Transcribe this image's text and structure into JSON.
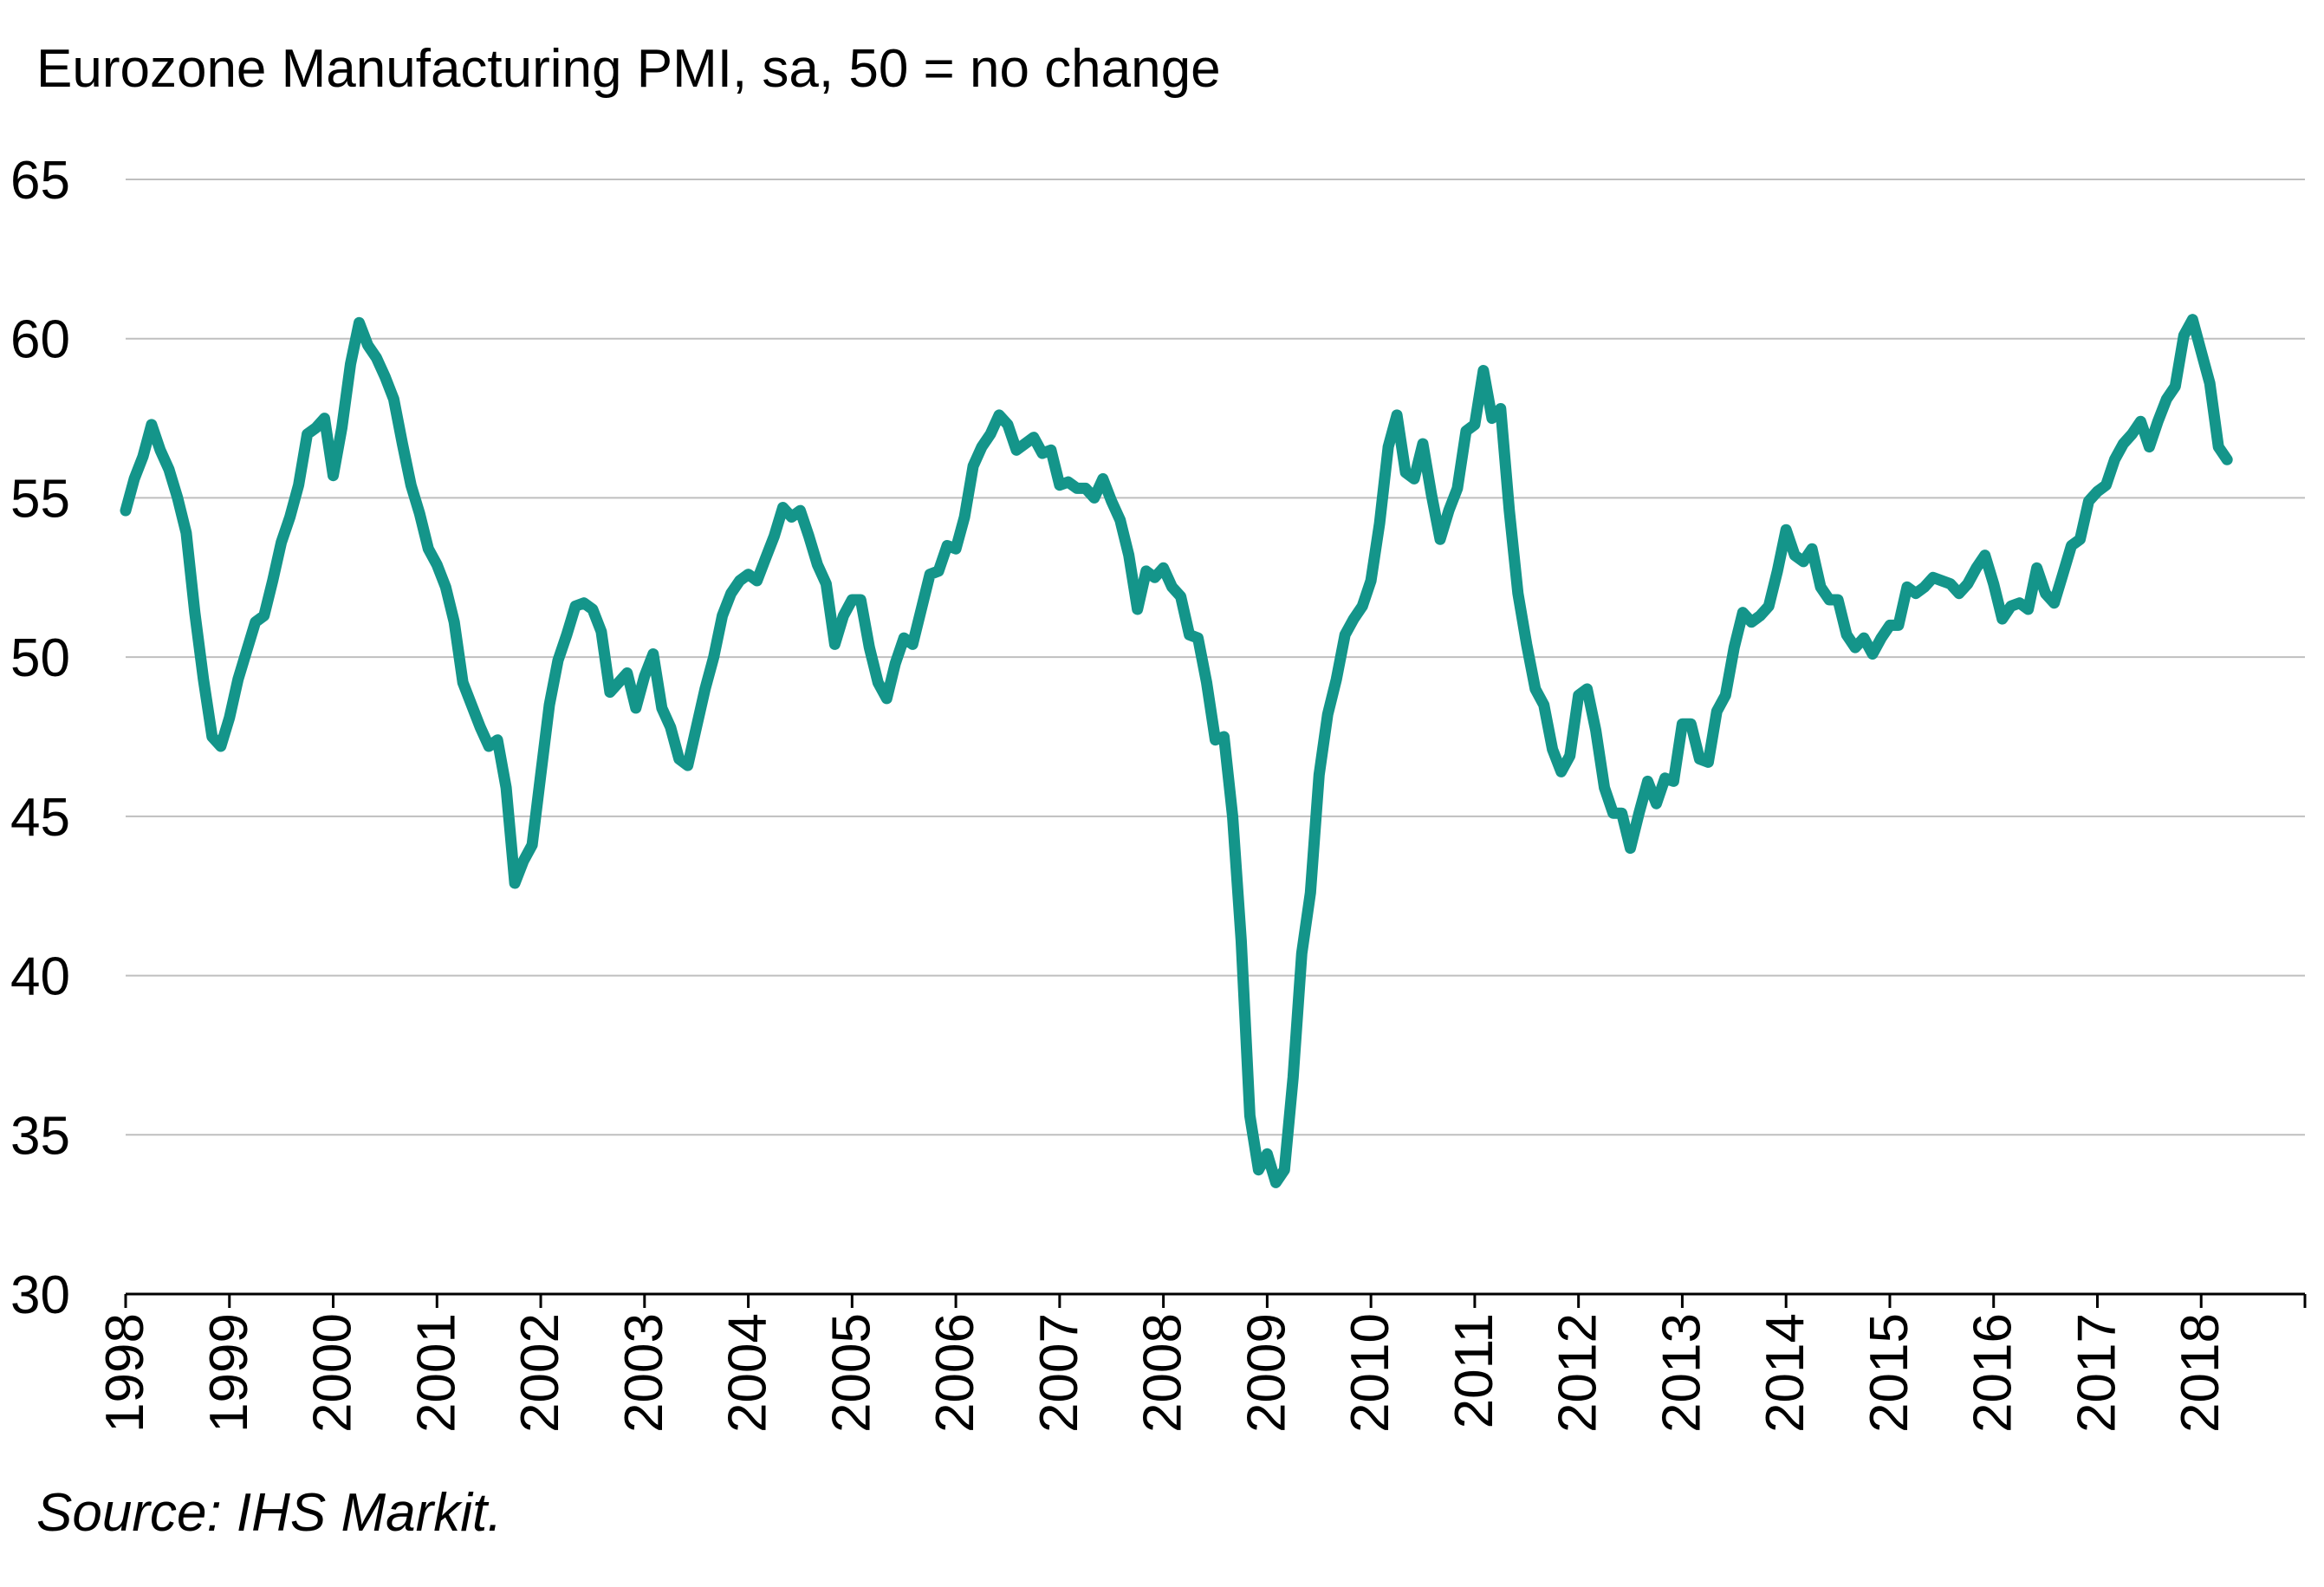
{
  "title": "Eurozone Manufacturing PMI, sa, 50 = no change",
  "source": "Source: IHS Markit.",
  "colors": {
    "line": "#14958a",
    "grid": "#bfbfbf",
    "axis": "#000000"
  },
  "chart_data": {
    "type": "line",
    "title": "Eurozone Manufacturing PMI, sa, 50 = no change",
    "xlabel": "",
    "ylabel": "",
    "ylim": [
      30,
      65
    ],
    "yticks": [
      30,
      35,
      40,
      45,
      50,
      55,
      60,
      65
    ],
    "xticks": [
      "1998",
      "1999",
      "2000",
      "2001",
      "2002",
      "2003",
      "2004",
      "2005",
      "2006",
      "2007",
      "2008",
      "2009",
      "2010",
      "2011",
      "2012",
      "2013",
      "2014",
      "2015",
      "2016",
      "2017",
      "2018"
    ],
    "xlim": [
      "1998-01",
      "2019-01"
    ],
    "grid": "horizontal",
    "legend": "none",
    "series": [
      {
        "x": [
          "1998-01",
          "1998-02",
          "1998-03",
          "1998-04",
          "1998-05",
          "1998-06",
          "1998-07",
          "1998-08",
          "1998-09",
          "1998-10",
          "1998-11",
          "1998-12",
          "1999-01",
          "1999-02",
          "1999-03",
          "1999-04",
          "1999-05",
          "1999-06",
          "1999-07",
          "1999-08",
          "1999-09",
          "1999-10",
          "1999-11",
          "1999-12",
          "2000-01",
          "2000-02",
          "2000-03",
          "2000-04",
          "2000-05",
          "2000-06",
          "2000-07",
          "2000-08",
          "2000-09",
          "2000-10",
          "2000-11",
          "2000-12",
          "2001-01",
          "2001-02",
          "2001-03",
          "2001-04",
          "2001-05",
          "2001-06",
          "2001-07",
          "2001-08",
          "2001-09",
          "2001-10",
          "2001-11",
          "2001-12",
          "2002-01",
          "2002-02",
          "2002-03",
          "2002-04",
          "2002-05",
          "2002-06",
          "2002-07",
          "2002-08",
          "2002-09",
          "2002-10",
          "2002-11",
          "2002-12",
          "2003-01",
          "2003-02",
          "2003-03",
          "2003-04",
          "2003-05",
          "2003-06",
          "2003-07",
          "2003-08",
          "2003-09",
          "2003-10",
          "2003-11",
          "2003-12",
          "2004-01",
          "2004-02",
          "2004-03",
          "2004-04",
          "2004-05",
          "2004-06",
          "2004-07",
          "2004-08",
          "2004-09",
          "2004-10",
          "2004-11",
          "2004-12",
          "2005-01",
          "2005-02",
          "2005-03",
          "2005-04",
          "2005-05",
          "2005-06",
          "2005-07",
          "2005-08",
          "2005-09",
          "2005-10",
          "2005-11",
          "2005-12",
          "2006-01",
          "2006-02",
          "2006-03",
          "2006-04",
          "2006-05",
          "2006-06",
          "2006-07",
          "2006-08",
          "2006-09",
          "2006-10",
          "2006-11",
          "2006-12",
          "2007-01",
          "2007-02",
          "2007-03",
          "2007-04",
          "2007-05",
          "2007-06",
          "2007-07",
          "2007-08",
          "2007-09",
          "2007-10",
          "2007-11",
          "2007-12",
          "2008-01",
          "2008-02",
          "2008-03",
          "2008-04",
          "2008-05",
          "2008-06",
          "2008-07",
          "2008-08",
          "2008-09",
          "2008-10",
          "2008-11",
          "2008-12",
          "2009-01",
          "2009-02",
          "2009-03",
          "2009-04",
          "2009-05",
          "2009-06",
          "2009-07",
          "2009-08",
          "2009-09",
          "2009-10",
          "2009-11",
          "2009-12",
          "2010-01",
          "2010-02",
          "2010-03",
          "2010-04",
          "2010-05",
          "2010-06",
          "2010-07",
          "2010-08",
          "2010-09",
          "2010-10",
          "2010-11",
          "2010-12",
          "2011-01",
          "2011-02",
          "2011-03",
          "2011-04",
          "2011-05",
          "2011-06",
          "2011-07",
          "2011-08",
          "2011-09",
          "2011-10",
          "2011-11",
          "2011-12",
          "2012-01",
          "2012-02",
          "2012-03",
          "2012-04",
          "2012-05",
          "2012-06",
          "2012-07",
          "2012-08",
          "2012-09",
          "2012-10",
          "2012-11",
          "2012-12",
          "2013-01",
          "2013-02",
          "2013-03",
          "2013-04",
          "2013-05",
          "2013-06",
          "2013-07",
          "2013-08",
          "2013-09",
          "2013-10",
          "2013-11",
          "2013-12",
          "2014-01",
          "2014-02",
          "2014-03",
          "2014-04",
          "2014-05",
          "2014-06",
          "2014-07",
          "2014-08",
          "2014-09",
          "2014-10",
          "2014-11",
          "2014-12",
          "2015-01",
          "2015-02",
          "2015-03",
          "2015-04",
          "2015-05",
          "2015-06",
          "2015-07",
          "2015-08",
          "2015-09",
          "2015-10",
          "2015-11",
          "2015-12",
          "2016-01",
          "2016-02",
          "2016-03",
          "2016-04",
          "2016-05",
          "2016-06",
          "2016-07",
          "2016-08",
          "2016-09",
          "2016-10",
          "2016-11",
          "2016-12",
          "2017-01",
          "2017-02",
          "2017-03",
          "2017-04",
          "2017-05",
          "2017-06",
          "2017-07",
          "2017-08",
          "2017-09",
          "2017-10",
          "2017-11",
          "2017-12",
          "2018-01",
          "2018-02",
          "2018-03",
          "2018-04",
          "2018-05"
        ],
        "values": [
          54.6,
          55.6,
          56.3,
          57.3,
          56.5,
          55.9,
          55.0,
          53.9,
          51.4,
          49.3,
          47.5,
          47.2,
          48.1,
          49.3,
          50.2,
          51.1,
          51.3,
          52.4,
          53.6,
          54.4,
          55.4,
          57.0,
          57.2,
          57.5,
          55.7,
          57.2,
          59.2,
          60.5,
          59.8,
          59.4,
          58.8,
          58.1,
          56.7,
          55.4,
          54.5,
          53.4,
          52.9,
          52.2,
          51.1,
          49.2,
          48.5,
          47.8,
          47.2,
          47.4,
          45.9,
          42.9,
          43.6,
          44.1,
          46.3,
          48.5,
          49.9,
          50.7,
          51.6,
          51.7,
          51.5,
          50.8,
          48.9,
          49.2,
          49.5,
          48.4,
          49.4,
          50.1,
          48.4,
          47.8,
          46.8,
          46.6,
          47.8,
          49.0,
          50.0,
          51.3,
          52.0,
          52.4,
          52.6,
          52.4,
          53.1,
          53.8,
          54.7,
          54.4,
          54.6,
          53.8,
          52.9,
          52.3,
          50.4,
          51.3,
          51.8,
          51.8,
          50.3,
          49.2,
          48.7,
          49.8,
          50.6,
          50.4,
          51.5,
          52.6,
          52.7,
          53.5,
          53.4,
          54.4,
          56.0,
          56.6,
          57.0,
          57.6,
          57.3,
          56.5,
          56.7,
          56.9,
          56.4,
          56.5,
          55.4,
          55.5,
          55.3,
          55.3,
          55.0,
          55.6,
          54.9,
          54.3,
          53.2,
          51.5,
          52.7,
          52.5,
          52.8,
          52.2,
          51.9,
          50.7,
          50.6,
          49.2,
          47.4,
          47.5,
          45.0,
          41.1,
          35.6,
          33.9,
          34.4,
          33.5,
          33.9,
          36.8,
          40.7,
          42.6,
          46.3,
          48.2,
          49.3,
          50.7,
          51.2,
          51.6,
          52.4,
          54.2,
          56.6,
          57.6,
          55.8,
          55.6,
          56.7,
          55.1,
          53.7,
          54.6,
          55.3,
          57.1,
          57.3,
          59.0,
          57.5,
          57.8,
          54.6,
          52.0,
          50.4,
          49.0,
          48.5,
          47.1,
          46.4,
          46.9,
          48.8,
          49.0,
          47.7,
          45.9,
          45.1,
          45.1,
          44.0,
          45.1,
          46.1,
          45.4,
          46.2,
          46.1,
          47.9,
          47.9,
          46.8,
          46.7,
          48.3,
          48.8,
          50.3,
          51.4,
          51.1,
          51.3,
          51.6,
          52.7,
          54.0,
          53.2,
          53.0,
          53.4,
          52.2,
          51.8,
          51.8,
          50.7,
          50.3,
          50.6,
          50.1,
          50.6,
          51.0,
          51.0,
          52.2,
          52.0,
          52.2,
          52.5,
          52.4,
          52.3,
          52.0,
          52.3,
          52.8,
          53.2,
          52.3,
          51.2,
          51.6,
          51.7,
          51.5,
          52.8,
          52.0,
          51.7,
          52.6,
          53.5,
          53.7,
          54.9,
          55.2,
          55.4,
          56.2,
          56.7,
          57.0,
          57.4,
          56.6,
          57.4,
          58.1,
          58.5,
          60.1,
          60.6,
          59.6,
          58.6,
          56.6,
          56.2,
          null
        ]
      }
    ]
  }
}
